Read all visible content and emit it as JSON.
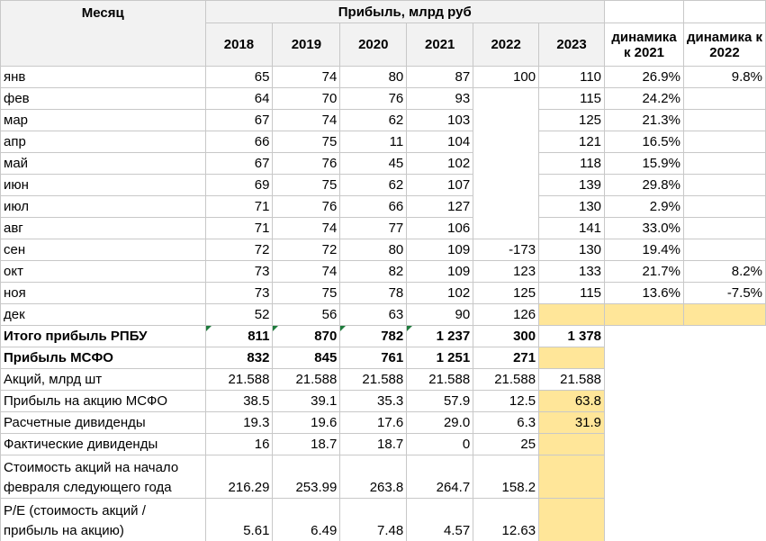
{
  "header": {
    "month": "Месяц",
    "group": "Прибыль, млрд руб",
    "years": [
      "2018",
      "2019",
      "2020",
      "2021",
      "2022",
      "2023"
    ],
    "dynamics": [
      "динамика к 2021",
      "динамика к 2022"
    ]
  },
  "months": [
    {
      "label": "янв",
      "values": [
        "65",
        "74",
        "80",
        "87",
        "100",
        "110",
        "26.9%",
        "9.8%"
      ]
    },
    {
      "label": "фев",
      "values": [
        "64",
        "70",
        "76",
        "93",
        null,
        "115",
        "24.2%",
        null
      ]
    },
    {
      "label": "мар",
      "values": [
        "67",
        "74",
        "62",
        "103",
        null,
        "125",
        "21.3%",
        null
      ]
    },
    {
      "label": "апр",
      "values": [
        "66",
        "75",
        "11",
        "104",
        null,
        "121",
        "16.5%",
        null
      ]
    },
    {
      "label": "май",
      "values": [
        "67",
        "76",
        "45",
        "102",
        null,
        "118",
        "15.9%",
        null
      ]
    },
    {
      "label": "июн",
      "values": [
        "69",
        "75",
        "62",
        "107",
        null,
        "139",
        "29.8%",
        null
      ]
    },
    {
      "label": "июл",
      "values": [
        "71",
        "76",
        "66",
        "127",
        null,
        "130",
        "2.9%",
        null
      ]
    },
    {
      "label": "авг",
      "values": [
        "71",
        "74",
        "77",
        "106",
        null,
        "141",
        "33.0%",
        null
      ]
    },
    {
      "label": "сен",
      "values": [
        "72",
        "72",
        "80",
        "109",
        "-173",
        "130",
        "19.4%",
        null
      ]
    },
    {
      "label": "окт",
      "values": [
        "73",
        "74",
        "82",
        "109",
        "123",
        "133",
        "21.7%",
        "8.2%"
      ]
    },
    {
      "label": "ноя",
      "values": [
        "73",
        "75",
        "78",
        "102",
        "125",
        "115",
        "13.6%",
        "-7.5%"
      ]
    },
    {
      "label": "дек",
      "values": [
        "52",
        "56",
        "63",
        "90",
        "126",
        null,
        null,
        null
      ]
    }
  ],
  "summary": [
    {
      "label": "Итого прибыль РПБУ",
      "values": [
        "811",
        "870",
        "782",
        "1 237",
        "300",
        "1 378"
      ]
    },
    {
      "label": "Прибыль МСФО",
      "values": [
        "832",
        "845",
        "761",
        "1 251",
        "271",
        null
      ]
    },
    {
      "label": "Акций, млрд шт",
      "values": [
        "21.588",
        "21.588",
        "21.588",
        "21.588",
        "21.588",
        "21.588"
      ]
    },
    {
      "label": "Прибыль на акцию МСФО",
      "values": [
        "38.5",
        "39.1",
        "35.3",
        "57.9",
        "12.5",
        "63.8"
      ]
    },
    {
      "label": "Расчетные дивиденды",
      "values": [
        "19.3",
        "19.6",
        "17.6",
        "29.0",
        "6.3",
        "31.9"
      ]
    },
    {
      "label": "Фактические дивиденды",
      "values": [
        "16",
        "18.7",
        "18.7",
        "0",
        "25",
        null
      ]
    },
    {
      "label": "Стоимость акций на начало февраля следующего года",
      "values": [
        "216.29",
        "253.99",
        "263.8",
        "264.7",
        "158.2",
        null
      ]
    },
    {
      "label": "P/E (стоимость акций / прибыль на акцию)",
      "values": [
        "5.61",
        "6.49",
        "7.48",
        "4.57",
        "12.63",
        null
      ]
    }
  ]
}
